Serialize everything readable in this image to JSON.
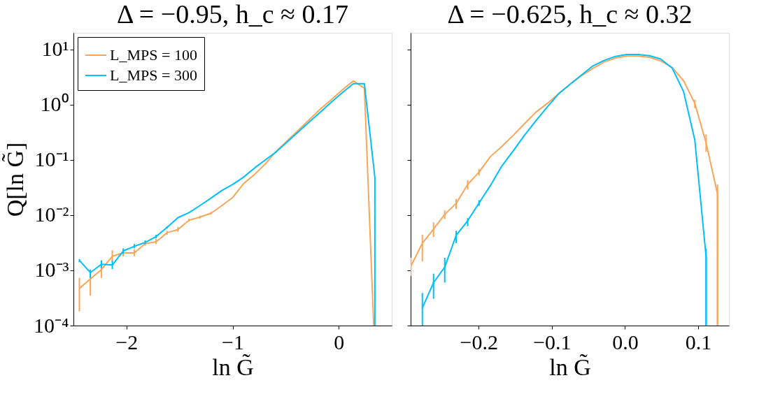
{
  "chart_data": [
    {
      "type": "line",
      "title": "Δ = −0.95, h_c ≈ 0.17",
      "xlabel": "ln G̃",
      "ylabel": "Q[ln G̃]",
      "log": "y",
      "grid": false,
      "legend": "top left",
      "xlim": [
        -2.5,
        0.5
      ],
      "xticks": [
        {
          "value": -2,
          "label": "−2"
        },
        {
          "value": -1,
          "label": "−1"
        },
        {
          "value": 0,
          "label": "0"
        }
      ],
      "ylim": [
        0.0001,
        20
      ],
      "yticks": [
        {
          "value": 0.0001,
          "label": "10⁻⁴"
        },
        {
          "value": 0.001,
          "label": "10⁻³"
        },
        {
          "value": 0.01,
          "label": "10⁻²"
        },
        {
          "value": 0.1,
          "label": "10⁻¹"
        },
        {
          "value": 1,
          "label": "10⁰"
        },
        {
          "value": 10,
          "label": "10¹"
        }
      ],
      "series": [
        {
          "name": "L_MPS = 100",
          "color": "#f9a65a",
          "x": [
            -2.444,
            -2.341,
            -2.237,
            -2.134,
            -2.031,
            -1.927,
            -1.824,
            -1.721,
            -1.618,
            -1.515,
            -1.411,
            -1.308,
            -1.204,
            -1.101,
            -0.998,
            -0.895,
            -0.791,
            -0.688,
            -0.585,
            -0.481,
            -0.378,
            -0.275,
            -0.171,
            -0.068,
            0.035,
            0.138,
            0.242,
            0.33
          ],
          "values": [
            0.00047,
            0.0007,
            0.00103,
            0.0018,
            0.00207,
            0.00207,
            0.00305,
            0.0033,
            0.0048,
            0.0055,
            0.0081,
            0.0092,
            0.0108,
            0.0149,
            0.021,
            0.0375,
            0.055,
            0.086,
            0.146,
            0.226,
            0.35,
            0.54,
            0.84,
            1.24,
            1.86,
            2.69,
            2.0,
            0.0001
          ],
          "errors": [
            [
              0.00018,
              0.00073
            ],
            [
              0.00035,
              0.00098
            ],
            [
              0.00073,
              0.00145
            ],
            [
              0.00145,
              0.0023
            ],
            [
              0.0018,
              0.0024
            ],
            [
              0.0018,
              0.0024
            ],
            [
              0.0028,
              0.0034
            ],
            [
              0.003,
              0.0037
            ],
            [
              0.0044,
              0.0052
            ],
            [
              0.005,
              0.0061
            ],
            [
              0.0077,
              0.0086
            ],
            [
              0.0087,
              0.0098
            ],
            [
              0.0102,
              0.0114
            ],
            null,
            null,
            null,
            null,
            null,
            null,
            null,
            null,
            null,
            null,
            null,
            null,
            null,
            null,
            null
          ]
        },
        {
          "name": "L_MPS = 300",
          "color": "#00bfff",
          "x": [
            -2.444,
            -2.341,
            -2.237,
            -2.134,
            -2.031,
            -1.927,
            -1.824,
            -1.721,
            -1.618,
            -1.515,
            -1.411,
            -1.308,
            -1.204,
            -1.101,
            -0.998,
            -0.895,
            -0.791,
            -0.688,
            -0.585,
            -0.481,
            -0.378,
            -0.275,
            -0.171,
            -0.068,
            0.035,
            0.138,
            0.242,
            0.341,
            0.341
          ],
          "values": [
            0.00152,
            0.00091,
            0.00129,
            0.00125,
            0.00224,
            0.00272,
            0.0032,
            0.0041,
            0.006,
            0.009,
            0.0111,
            0.0149,
            0.0203,
            0.028,
            0.036,
            0.049,
            0.072,
            0.101,
            0.142,
            0.215,
            0.327,
            0.49,
            0.74,
            1.12,
            1.66,
            2.4,
            2.4,
            0.048,
            0.0001
          ],
          "errors": [
            [
              0.0014,
              0.0016
            ],
            [
              0.00073,
              0.00103
            ],
            [
              0.0011,
              0.00152
            ],
            [
              0.00105,
              0.0015
            ],
            [
              0.002,
              0.0025
            ],
            [
              0.0025,
              0.003
            ],
            [
              0.003,
              0.0035
            ],
            [
              0.0038,
              0.0044
            ],
            [
              0.0057,
              0.0063
            ],
            null,
            null,
            null,
            null,
            null,
            null,
            null,
            null,
            null,
            null,
            null,
            null,
            null,
            null,
            null,
            null,
            null,
            null,
            null,
            null
          ]
        }
      ]
    },
    {
      "type": "line",
      "title": "Δ = −0.625, h_c ≈ 0.32",
      "xlabel": "ln G̃",
      "log": "y",
      "grid": false,
      "legend": false,
      "tick_labels": "x",
      "xlim": [
        -0.293,
        0.142
      ],
      "xticks": [
        {
          "value": -0.2,
          "label": "−0.2"
        },
        {
          "value": -0.1,
          "label": "−0.1"
        },
        {
          "value": 0.0,
          "label": "0.0"
        },
        {
          "value": 0.1,
          "label": "0.1"
        }
      ],
      "ylim": [
        0.0001,
        20
      ],
      "yticks": [
        {
          "value": 0.0001,
          "label": null
        },
        {
          "value": 0.001,
          "label": null
        },
        {
          "value": 0.01,
          "label": null
        },
        {
          "value": 0.1,
          "label": null
        },
        {
          "value": 1,
          "label": null
        },
        {
          "value": 10,
          "label": null
        }
      ],
      "series": [
        {
          "color": "#f9a65a",
          "x": [
            -0.2927,
            -0.277,
            -0.2617,
            -0.2464,
            -0.2308,
            -0.2151,
            -0.1995,
            -0.1842,
            -0.1685,
            -0.1529,
            -0.1376,
            -0.1219,
            -0.1063,
            -0.091,
            -0.0753,
            -0.0597,
            -0.0444,
            -0.0287,
            -0.0131,
            0.0022,
            0.0179,
            0.0335,
            0.0488,
            0.0645,
            0.0801,
            0.0954,
            0.1108,
            0.1264,
            0.1264
          ],
          "values": [
            0.00119,
            0.0031,
            0.0056,
            0.0103,
            0.0163,
            0.036,
            0.06,
            0.114,
            0.175,
            0.277,
            0.45,
            0.73,
            1.05,
            1.58,
            2.33,
            3.31,
            4.52,
            5.9,
            7.0,
            7.6,
            7.6,
            7.2,
            6.2,
            4.7,
            2.7,
            1.05,
            0.203,
            0.024,
            0.0001
          ],
          "errors": [
            [
              0.00079,
              0.0017
            ],
            [
              0.00145,
              0.0044
            ],
            [
              0.004,
              0.0074
            ],
            [
              0.0085,
              0.0122
            ],
            [
              0.013,
              0.0196
            ],
            [
              0.029,
              0.043
            ],
            [
              0.052,
              0.068
            ],
            null,
            null,
            null,
            null,
            null,
            null,
            null,
            null,
            null,
            null,
            null,
            null,
            null,
            null,
            null,
            null,
            null,
            null,
            [
              0.87,
              1.23
            ],
            [
              0.14,
              0.29
            ],
            [
              0.0001,
              0.036
            ],
            null
          ]
        },
        {
          "color": "#00bfff",
          "x": [
            -0.277,
            -0.2617,
            -0.2464,
            -0.2308,
            -0.2151,
            -0.1995,
            -0.1842,
            -0.1685,
            -0.1529,
            -0.1376,
            -0.1219,
            -0.1063,
            -0.091,
            -0.0753,
            -0.0597,
            -0.0444,
            -0.0287,
            -0.0131,
            0.0022,
            0.0179,
            0.0335,
            0.0488,
            0.0645,
            0.0801,
            0.0954,
            0.1108,
            0.1108
          ],
          "values": [
            0.000208,
            0.0006,
            0.00114,
            0.0043,
            0.0079,
            0.0166,
            0.034,
            0.077,
            0.145,
            0.277,
            0.51,
            0.91,
            1.56,
            2.33,
            3.44,
            4.98,
            6.3,
            7.5,
            8.1,
            8.1,
            7.7,
            6.7,
            4.6,
            1.71,
            0.228,
            0.00175,
            0.0001
          ],
          "errors": [
            [
              0.0001,
              0.00039
            ],
            [
              0.000306,
              0.00087
            ],
            [
              0.0006,
              0.00169
            ],
            [
              0.0031,
              0.0052
            ],
            [
              0.0063,
              0.0088
            ],
            [
              0.0147,
              0.0186
            ],
            null,
            null,
            null,
            null,
            null,
            null,
            null,
            null,
            null,
            null,
            null,
            null,
            null,
            null,
            null,
            null,
            null,
            null,
            null,
            [
              0.0001,
              0.0025
            ],
            null
          ]
        }
      ]
    }
  ]
}
